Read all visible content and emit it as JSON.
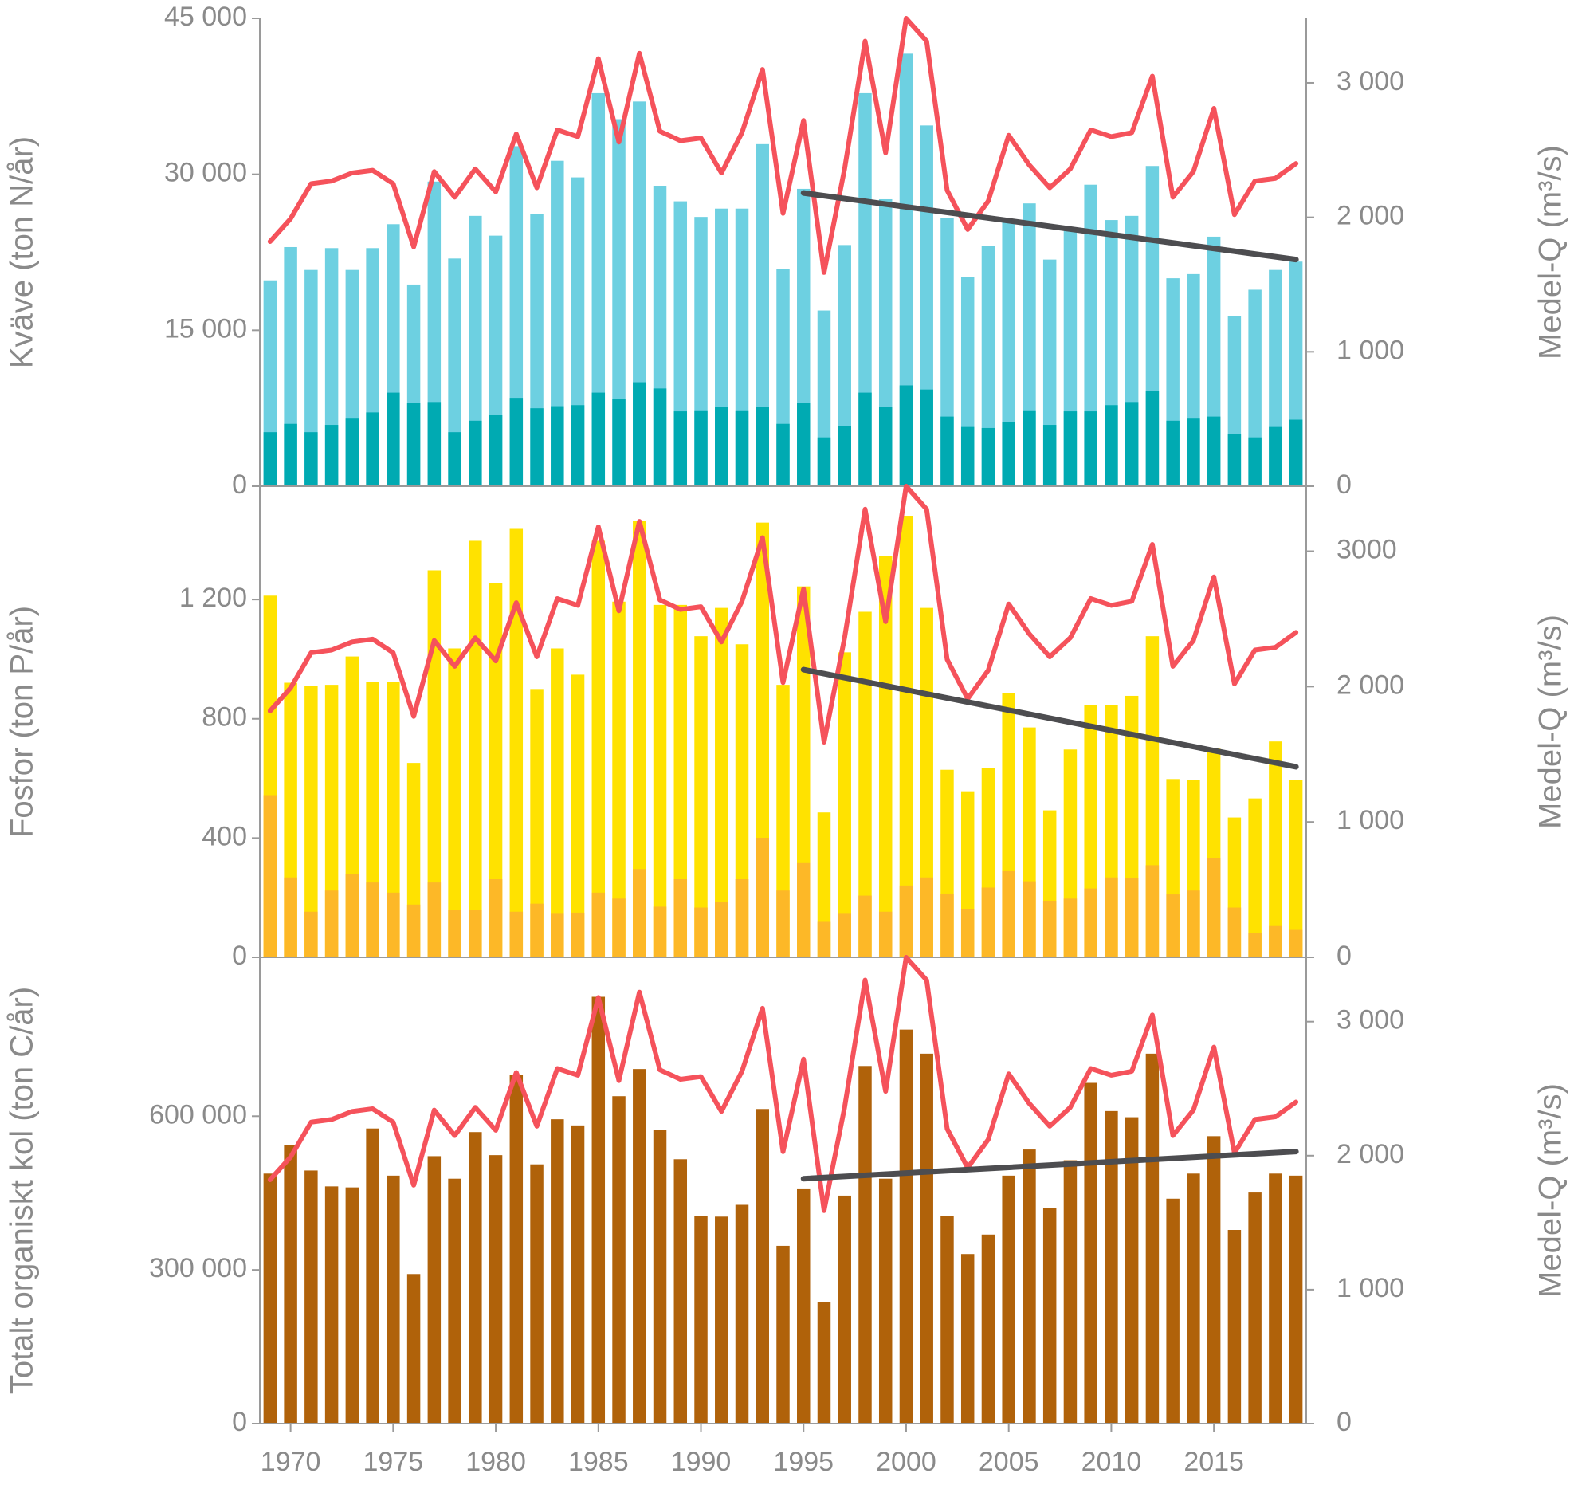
{
  "chart_data": [
    {
      "type": "bar",
      "ylabel": "Kväve (ton N/år)",
      "y2label": "Medel-Q (m³/s)",
      "x": [
        1969,
        1970,
        1971,
        1972,
        1973,
        1974,
        1975,
        1976,
        1977,
        1978,
        1979,
        1980,
        1981,
        1982,
        1983,
        1984,
        1985,
        1986,
        1987,
        1988,
        1989,
        1990,
        1991,
        1992,
        1993,
        1994,
        1995,
        1996,
        1997,
        1998,
        1999,
        2000,
        2001,
        2002,
        2003,
        2004,
        2005,
        2006,
        2007,
        2008,
        2009,
        2010,
        2011,
        2012,
        2013,
        2014,
        2015,
        2016,
        2017,
        2018,
        2019
      ],
      "xlim": [
        1968.5,
        2019.5
      ],
      "ylim": [
        0,
        45000
      ],
      "yticks": [
        0,
        {
          "value": 15000,
          "label": "15 000"
        },
        {
          "value": 30000,
          "label": "30 000"
        },
        {
          "value": 45000,
          "label": "45 000"
        }
      ],
      "y2lim": [
        0,
        3480
      ],
      "y2ticks": [
        0,
        {
          "value": 1000,
          "label": "1 000"
        },
        {
          "value": 2000,
          "label": "2 000"
        },
        {
          "value": 3000,
          "label": "3 000"
        }
      ],
      "series": [
        {
          "color": "#6dd0e1",
          "values": [
            19800,
            23000,
            20800,
            22900,
            20800,
            22900,
            25200,
            19400,
            29300,
            21900,
            26000,
            24100,
            32700,
            26200,
            31300,
            29700,
            37800,
            35300,
            37000,
            28900,
            27400,
            25900,
            26700,
            26700,
            32900,
            20900,
            28600,
            16900,
            23200,
            37800,
            27600,
            41600,
            34700,
            25800,
            20100,
            23100,
            25500,
            27200,
            21800,
            24900,
            29000,
            25600,
            26000,
            30800,
            20000,
            20400,
            24000,
            16400,
            18900,
            20800,
            21600
          ]
        },
        {
          "color": "#00aab2",
          "values": [
            5200,
            6000,
            5200,
            5900,
            6500,
            7100,
            9000,
            8000,
            8100,
            5200,
            6300,
            6900,
            8500,
            7500,
            7700,
            7800,
            9000,
            8400,
            10000,
            9400,
            7200,
            7300,
            7600,
            7300,
            7600,
            6000,
            8000,
            4700,
            5800,
            9000,
            7600,
            9700,
            9300,
            6700,
            5700,
            5600,
            6200,
            7300,
            5900,
            7200,
            7200,
            7800,
            8100,
            9200,
            6300,
            6500,
            6700,
            5000,
            4700,
            5700,
            6400
          ]
        },
        {
          "type": "line",
          "axis": "y2",
          "color": "#f5525b",
          "values": [
            1820,
            1990,
            2250,
            2270,
            2330,
            2350,
            2250,
            1780,
            2340,
            2150,
            2360,
            2190,
            2620,
            2220,
            2650,
            2600,
            3180,
            2560,
            3220,
            2640,
            2570,
            2590,
            2330,
            2630,
            3100,
            2030,
            2720,
            1590,
            2360,
            3310,
            2480,
            3480,
            3310,
            2200,
            1910,
            2120,
            2610,
            2390,
            2220,
            2360,
            2650,
            2600,
            2630,
            3050,
            2150,
            2340,
            2810,
            2020,
            2270,
            2290,
            2400
          ]
        },
        {
          "type": "line",
          "color": "#4d4d50",
          "x": [
            1995,
            2019
          ],
          "values": [
            28200,
            21800
          ]
        }
      ]
    },
    {
      "type": "bar",
      "ylabel": "Fosfor (ton P/år)",
      "y2label": "Medel-Q (m³/s)",
      "x": [
        1969,
        1970,
        1971,
        1972,
        1973,
        1974,
        1975,
        1976,
        1977,
        1978,
        1979,
        1980,
        1981,
        1982,
        1983,
        1984,
        1985,
        1986,
        1987,
        1988,
        1989,
        1990,
        1991,
        1992,
        1993,
        1994,
        1995,
        1996,
        1997,
        1998,
        1999,
        2000,
        2001,
        2002,
        2003,
        2004,
        2005,
        2006,
        2007,
        2008,
        2009,
        2010,
        2011,
        2012,
        2013,
        2014,
        2015,
        2016,
        2017,
        2018,
        2019
      ],
      "xlim": [
        1968.5,
        2019.5
      ],
      "ylim": [
        0,
        1580
      ],
      "yticks": [
        0,
        400,
        800,
        {
          "value": 1200,
          "label": "1 200"
        }
      ],
      "y2lim": [
        0,
        3480
      ],
      "y2ticks": [
        0,
        {
          "value": 1000,
          "label": "1 000"
        },
        {
          "value": 2000,
          "label": "2 000"
        },
        3000
      ],
      "series": [
        {
          "color": "#ffe200",
          "values": [
            1213,
            921,
            911,
            914,
            1009,
            924,
            924,
            652,
            1298,
            1036,
            1397,
            1254,
            1437,
            900,
            1036,
            948,
            1397,
            1193,
            1464,
            1182,
            1182,
            1077,
            1172,
            1050,
            1458,
            914,
            1244,
            486,
            1023,
            1159,
            1346,
            1481,
            1172,
            629,
            557,
            635,
            887,
            771,
            493,
            697,
            846,
            846,
            877,
            1077,
            598,
            595,
            700,
            469,
            533,
            724,
            595
          ]
        },
        {
          "color": "#fdb827",
          "values": [
            544,
            268,
            153,
            224,
            279,
            251,
            217,
            177,
            251,
            160,
            160,
            262,
            153,
            180,
            146,
            150,
            217,
            197,
            296,
            170,
            262,
            167,
            187,
            262,
            401,
            224,
            316,
            119,
            146,
            207,
            153,
            241,
            268,
            214,
            163,
            234,
            289,
            255,
            190,
            197,
            231,
            268,
            265,
            309,
            211,
            224,
            333,
            167,
            82,
            105,
            92
          ]
        },
        {
          "type": "line",
          "axis": "y2",
          "color": "#f5525b",
          "values": [
            1820,
            1990,
            2250,
            2270,
            2330,
            2350,
            2250,
            1780,
            2340,
            2150,
            2360,
            2190,
            2620,
            2220,
            2650,
            2600,
            3180,
            2560,
            3220,
            2640,
            2570,
            2590,
            2330,
            2630,
            3100,
            2030,
            2720,
            1590,
            2360,
            3310,
            2480,
            3480,
            3310,
            2200,
            1910,
            2120,
            2610,
            2390,
            2220,
            2360,
            2650,
            2600,
            2630,
            3050,
            2150,
            2340,
            2810,
            2020,
            2270,
            2290,
            2400
          ]
        },
        {
          "type": "line",
          "color": "#4d4d50",
          "x": [
            1995,
            2019
          ],
          "values": [
            965,
            639
          ]
        }
      ]
    },
    {
      "type": "bar",
      "ylabel": "Totalt organiskt kol (ton C/år)",
      "y2label": "Medel-Q (m³/s)",
      "x": [
        1969,
        1970,
        1971,
        1972,
        1973,
        1974,
        1975,
        1976,
        1977,
        1978,
        1979,
        1980,
        1981,
        1982,
        1983,
        1984,
        1985,
        1986,
        1987,
        1988,
        1989,
        1990,
        1991,
        1992,
        1993,
        1994,
        1995,
        1996,
        1997,
        1998,
        1999,
        2000,
        2001,
        2002,
        2003,
        2004,
        2005,
        2006,
        2007,
        2008,
        2009,
        2010,
        2011,
        2012,
        2013,
        2014,
        2015,
        2016,
        2017,
        2018,
        2019
      ],
      "xlim": [
        1968.5,
        2019.5
      ],
      "xticks": [
        1970,
        1975,
        1980,
        1985,
        1990,
        1995,
        2000,
        2005,
        2010,
        2015
      ],
      "ylim": [
        0,
        910000
      ],
      "yticks": [
        0,
        {
          "value": 300000,
          "label": "300 000"
        },
        {
          "value": 600000,
          "label": "600 000"
        }
      ],
      "y2lim": [
        0,
        3480
      ],
      "y2ticks": [
        0,
        {
          "value": 1000,
          "label": "1 000"
        },
        {
          "value": 2000,
          "label": "2 000"
        },
        {
          "value": 3000,
          "label": "3 000"
        }
      ],
      "series": [
        {
          "color": "#b0620a",
          "values": [
            488000,
            543000,
            494000,
            463000,
            461000,
            576000,
            484000,
            292000,
            522000,
            478000,
            569000,
            524000,
            680000,
            506000,
            594000,
            582000,
            833000,
            639000,
            692000,
            573000,
            516000,
            406000,
            404000,
            427000,
            614000,
            347000,
            459000,
            237000,
            445000,
            698000,
            478000,
            769000,
            722000,
            406000,
            331000,
            369000,
            484000,
            535000,
            420000,
            514000,
            665000,
            610000,
            598000,
            722000,
            439000,
            488000,
            561000,
            378000,
            451000,
            488000,
            484000
          ]
        },
        {
          "type": "line",
          "axis": "y2",
          "color": "#f5525b",
          "values": [
            1820,
            1990,
            2250,
            2270,
            2330,
            2350,
            2250,
            1780,
            2340,
            2150,
            2360,
            2190,
            2620,
            2220,
            2650,
            2600,
            3180,
            2560,
            3220,
            2640,
            2570,
            2590,
            2330,
            2630,
            3100,
            2030,
            2720,
            1590,
            2360,
            3310,
            2480,
            3480,
            3310,
            2200,
            1910,
            2120,
            2610,
            2390,
            2220,
            2360,
            2650,
            2600,
            2630,
            3050,
            2150,
            2340,
            2810,
            2020,
            2270,
            2290,
            2400
          ]
        },
        {
          "type": "line",
          "color": "#4d4d50",
          "x": [
            1995,
            2019
          ],
          "values": [
            478000,
            531000
          ]
        }
      ]
    }
  ]
}
